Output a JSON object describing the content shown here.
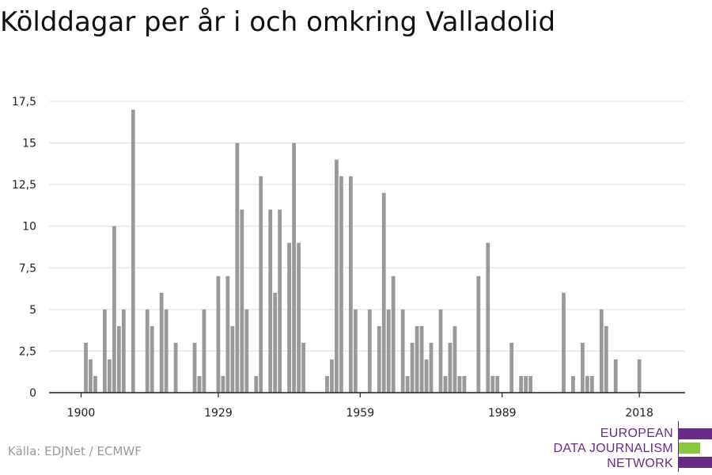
{
  "title": "Kölddagar per år i och omkring Valladolid",
  "source": "Källa: EDJNet / ECMWF",
  "logo": {
    "lines": [
      "EUROPEAN",
      "DATA JOURNALISM",
      "NETWORK"
    ],
    "colors": {
      "purple": "#6a2b86",
      "green": "#8dc63f"
    }
  },
  "colors": {
    "bar": "#999999",
    "grid": "#dddddd",
    "axis": "#222222",
    "text": "#222222"
  },
  "chart_data": {
    "type": "bar",
    "x": [
      1900,
      1901,
      1902,
      1903,
      1904,
      1905,
      1906,
      1907,
      1908,
      1909,
      1910,
      1911,
      1912,
      1913,
      1914,
      1915,
      1916,
      1917,
      1918,
      1919,
      1920,
      1921,
      1922,
      1923,
      1924,
      1925,
      1926,
      1927,
      1928,
      1929,
      1930,
      1931,
      1932,
      1933,
      1934,
      1935,
      1936,
      1937,
      1938,
      1939,
      1940,
      1941,
      1942,
      1943,
      1944,
      1945,
      1946,
      1947,
      1948,
      1949,
      1950,
      1951,
      1952,
      1953,
      1954,
      1955,
      1956,
      1957,
      1958,
      1959,
      1960,
      1961,
      1962,
      1963,
      1964,
      1965,
      1966,
      1967,
      1968,
      1969,
      1970,
      1971,
      1972,
      1973,
      1974,
      1975,
      1976,
      1977,
      1978,
      1979,
      1980,
      1981,
      1982,
      1983,
      1984,
      1985,
      1986,
      1987,
      1988,
      1989,
      1990,
      1991,
      1992,
      1993,
      1994,
      1995,
      1996,
      1997,
      1998,
      1999,
      2000,
      2001,
      2002,
      2003,
      2004,
      2005,
      2006,
      2007,
      2008,
      2009,
      2010,
      2011,
      2012,
      2013,
      2014,
      2015,
      2016,
      2017,
      2018,
      2019
    ],
    "values": [
      0,
      3,
      2,
      1,
      0,
      5,
      2,
      10,
      4,
      5,
      0,
      17,
      0,
      0,
      5,
      4,
      0,
      6,
      5,
      0,
      3,
      0,
      0,
      0,
      3,
      1,
      5,
      0,
      0,
      7,
      1,
      7,
      4,
      15,
      11,
      5,
      0,
      1,
      13,
      0,
      11,
      6,
      11,
      0,
      9,
      15,
      9,
      3,
      0,
      0,
      0,
      0,
      1,
      2,
      14,
      13,
      0,
      13,
      5,
      0,
      0,
      5,
      0,
      4,
      12,
      5,
      7,
      0,
      5,
      1,
      3,
      4,
      4,
      2,
      3,
      0,
      5,
      1,
      3,
      4,
      1,
      1,
      0,
      0,
      7,
      0,
      9,
      1,
      1,
      0,
      0,
      3,
      0,
      1,
      1,
      1,
      0,
      0,
      0,
      0,
      0,
      0,
      6,
      0,
      1,
      0,
      3,
      1,
      1,
      0,
      5,
      4,
      0,
      2,
      0,
      0,
      0,
      0,
      2,
      0
    ],
    "xticks": [
      1900,
      1929,
      1959,
      1989,
      2018
    ],
    "yticks": [
      "0",
      "2,5",
      "5",
      "7,5",
      "10",
      "12,5",
      "15",
      "17,5"
    ],
    "ylim": [
      0,
      17.5
    ],
    "xlabel": "",
    "ylabel": "",
    "grid": true
  }
}
